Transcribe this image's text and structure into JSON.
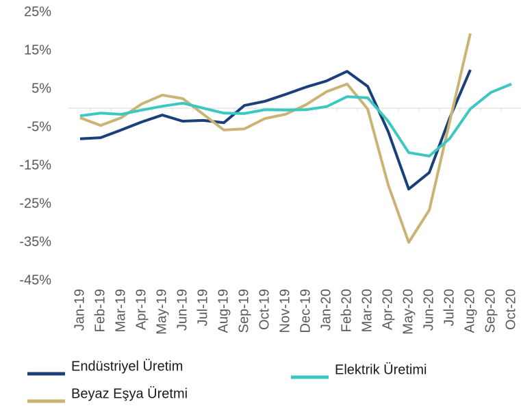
{
  "chart_data": {
    "type": "line",
    "categories": [
      "Jan-19",
      "Feb-19",
      "Mar-19",
      "Apr-19",
      "May-19",
      "Jun-19",
      "Jul-19",
      "Aug-19",
      "Sep-19",
      "Oct-19",
      "Nov-19",
      "Dec-19",
      "Jan-20",
      "Feb-20",
      "Mar-20",
      "Apr-20",
      "May-20",
      "Jun-20",
      "Jul-20",
      "Aug-20",
      "Sep-20",
      "Oct-20"
    ],
    "series": [
      {
        "name": "Endüstriyel Üretim",
        "color": "#1b3f7a",
        "values": [
          -8.0,
          -7.7,
          -5.7,
          -3.6,
          -1.8,
          -3.4,
          -3.2,
          -3.8,
          0.7,
          1.8,
          3.6,
          5.5,
          7.1,
          9.6,
          5.7,
          -6.1,
          -21.1,
          -16.8,
          -2.5,
          10.0,
          null,
          null
        ]
      },
      {
        "name": "Beyaz Eşya Üretmi",
        "color": "#c9b474",
        "values": [
          -2.5,
          -4.5,
          -2.5,
          1.1,
          3.4,
          2.5,
          -1.6,
          -5.7,
          -5.4,
          -2.7,
          -1.6,
          0.9,
          4.3,
          6.3,
          -0.2,
          -20.0,
          -35.0,
          -26.6,
          -3.4,
          19.5,
          null,
          null
        ]
      },
      {
        "name": "Elektrik Üretimi",
        "color": "#3cc8c0",
        "values": [
          -2.0,
          -1.3,
          -1.6,
          -0.5,
          0.5,
          1.3,
          0.0,
          -1.3,
          -1.4,
          -0.4,
          -0.5,
          -0.4,
          0.4,
          3.0,
          2.7,
          -3.4,
          -11.6,
          -12.5,
          -7.9,
          -0.2,
          4.1,
          6.3
        ]
      }
    ],
    "ylim": [
      -45,
      25
    ],
    "yticks": [
      {
        "value": 25,
        "label": "25%"
      },
      {
        "value": 15,
        "label": "15%"
      },
      {
        "value": 5,
        "label": "5%"
      },
      {
        "value": -5,
        "label": "-5%"
      },
      {
        "value": -15,
        "label": "-15%"
      },
      {
        "value": -25,
        "label": "-25%"
      },
      {
        "value": -35,
        "label": "-35%"
      },
      {
        "value": -45,
        "label": "-45%"
      }
    ],
    "grid": false
  }
}
